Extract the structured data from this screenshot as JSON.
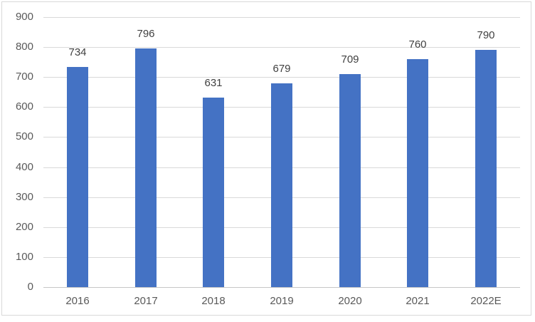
{
  "chart_data": {
    "type": "bar",
    "categories": [
      "2016",
      "2017",
      "2018",
      "2019",
      "2020",
      "2021",
      "2022E"
    ],
    "values": [
      734,
      796,
      631,
      679,
      709,
      760,
      790
    ],
    "title": "",
    "xlabel": "",
    "ylabel": "",
    "ylim": [
      0,
      900
    ],
    "yticks": [
      0,
      100,
      200,
      300,
      400,
      500,
      600,
      700,
      800,
      900
    ],
    "grid": true,
    "legend_position": "none",
    "bar_color": "#4472C4",
    "gridline_color": "#D9D9D9",
    "axis_line_color": "#C6C6C6",
    "tick_label_color": "#595959",
    "data_label_color": "#404040",
    "frame_border_color": "#D9D9D9",
    "background_color": "#FFFFFF"
  }
}
